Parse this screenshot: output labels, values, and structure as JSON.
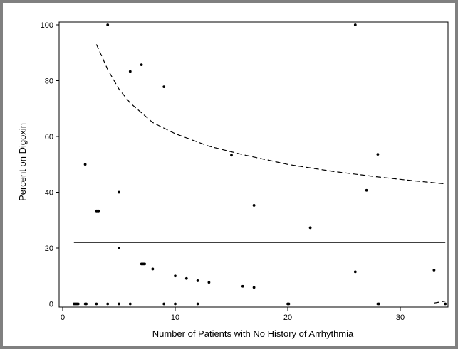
{
  "chart_data": {
    "type": "scatter",
    "title": "",
    "xlabel": "Number of Patients with No History of Arrhythmia",
    "ylabel": "Percent on Digoxin",
    "xlim": [
      0,
      34.5
    ],
    "ylim": [
      0,
      101
    ],
    "xticks": [
      0,
      10,
      20,
      30
    ],
    "yticks": [
      0,
      20,
      40,
      60,
      80,
      100
    ],
    "grid": false,
    "legend": "none",
    "points": [
      {
        "x": 4,
        "y": 100
      },
      {
        "x": 26,
        "y": 100
      },
      {
        "x": 7,
        "y": 85.7
      },
      {
        "x": 6,
        "y": 83.3
      },
      {
        "x": 9,
        "y": 77.8
      },
      {
        "x": 15,
        "y": 53.3
      },
      {
        "x": 28,
        "y": 53.6
      },
      {
        "x": 2,
        "y": 50
      },
      {
        "x": 27,
        "y": 40.7
      },
      {
        "x": 5,
        "y": 40
      },
      {
        "x": 17,
        "y": 35.3
      },
      {
        "x": 3,
        "y": 33.3
      },
      {
        "x": 3,
        "y": 33.3
      },
      {
        "x": 3,
        "y": 33.3
      },
      {
        "x": 22,
        "y": 27.3
      },
      {
        "x": 5,
        "y": 20
      },
      {
        "x": 7,
        "y": 14.3
      },
      {
        "x": 7,
        "y": 14.3
      },
      {
        "x": 7,
        "y": 14.3
      },
      {
        "x": 7,
        "y": 14.3
      },
      {
        "x": 8,
        "y": 12.5
      },
      {
        "x": 26,
        "y": 11.5
      },
      {
        "x": 33,
        "y": 12.1
      },
      {
        "x": 10,
        "y": 10
      },
      {
        "x": 11,
        "y": 9.1
      },
      {
        "x": 12,
        "y": 8.3
      },
      {
        "x": 13,
        "y": 7.7
      },
      {
        "x": 16,
        "y": 6.3
      },
      {
        "x": 17,
        "y": 5.9
      },
      {
        "x": 1,
        "y": 0
      },
      {
        "x": 1,
        "y": 0
      },
      {
        "x": 1,
        "y": 0
      },
      {
        "x": 1,
        "y": 0
      },
      {
        "x": 1,
        "y": 0
      },
      {
        "x": 2,
        "y": 0
      },
      {
        "x": 2,
        "y": 0
      },
      {
        "x": 3,
        "y": 0
      },
      {
        "x": 4,
        "y": 0
      },
      {
        "x": 5,
        "y": 0
      },
      {
        "x": 6,
        "y": 0
      },
      {
        "x": 9,
        "y": 0
      },
      {
        "x": 10,
        "y": 0
      },
      {
        "x": 12,
        "y": 0
      },
      {
        "x": 20,
        "y": 0
      },
      {
        "x": 20,
        "y": 0
      },
      {
        "x": 28,
        "y": 0
      },
      {
        "x": 28,
        "y": 0
      },
      {
        "x": 34,
        "y": 0
      }
    ],
    "series": [
      {
        "type": "horizontal-line",
        "style": "solid",
        "y": 22,
        "x_range": [
          1,
          34
        ]
      },
      {
        "type": "curve",
        "style": "dashed",
        "x_range": [
          3,
          34
        ],
        "points": [
          [
            3,
            93
          ],
          [
            4,
            84
          ],
          [
            5,
            77
          ],
          [
            6,
            72
          ],
          [
            8,
            65
          ],
          [
            10,
            61
          ],
          [
            13,
            56.5
          ],
          [
            16,
            53.5
          ],
          [
            20,
            50
          ],
          [
            24,
            47.5
          ],
          [
            28,
            45.5
          ],
          [
            31,
            44.2
          ],
          [
            34,
            43
          ]
        ]
      },
      {
        "type": "curve",
        "style": "dashed",
        "x_range": [
          33,
          34
        ],
        "points": [
          [
            33,
            0.3
          ],
          [
            34,
            1
          ]
        ]
      }
    ],
    "colors": {
      "points": "#000000",
      "lines": "#000000",
      "frame": "#808080"
    }
  }
}
